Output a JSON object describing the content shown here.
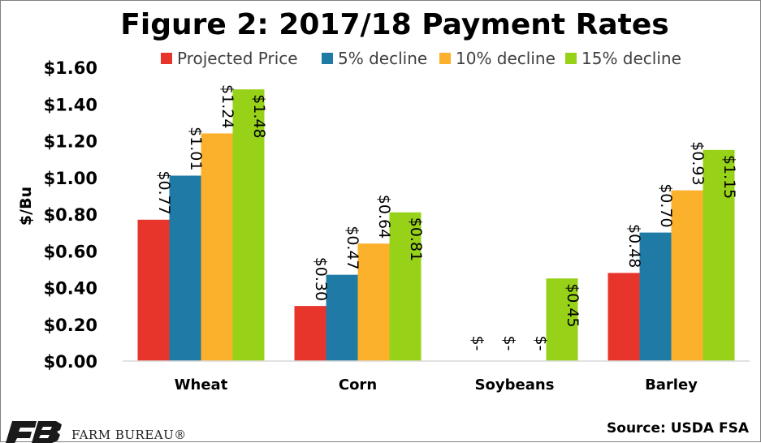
{
  "chart_data": {
    "type": "bar",
    "title": "Figure 2: 2017/18 Payment Rates",
    "ylabel": "$/Bu",
    "xlabel": "",
    "ylim": [
      0,
      1.6
    ],
    "yticks": [
      "$0.00",
      "$0.20",
      "$0.40",
      "$0.60",
      "$0.80",
      "$1.00",
      "$1.20",
      "$1.40",
      "$1.60"
    ],
    "categories": [
      "Wheat",
      "Corn",
      "Soybeans",
      "Barley"
    ],
    "legend_position": "top",
    "grid": false,
    "series": [
      {
        "name": "Projected Price",
        "color": "#e8352b",
        "values": [
          0.77,
          0.3,
          0,
          0.48
        ],
        "labels": [
          "$0.77",
          "$0.30",
          "$-",
          "$0.48"
        ]
      },
      {
        "name": "5% decline",
        "color": "#1f7aa6",
        "values": [
          1.01,
          0.47,
          0,
          0.7
        ],
        "labels": [
          "$1.01",
          "$0.47",
          "$-",
          "$0.70"
        ]
      },
      {
        "name": "10% decline",
        "color": "#fbb12b",
        "values": [
          1.24,
          0.64,
          0,
          0.93
        ],
        "labels": [
          "$1.24",
          "$0.64",
          "$-",
          "$0.93"
        ]
      },
      {
        "name": "15% decline",
        "color": "#97d218",
        "values": [
          1.48,
          0.81,
          0.45,
          1.15
        ],
        "labels": [
          "$1.48",
          "$0.81",
          "$0.45",
          "$1.15"
        ]
      }
    ]
  },
  "footer": {
    "source": "Source: USDA FSA",
    "logo_text": "FARM BUREAU®"
  }
}
